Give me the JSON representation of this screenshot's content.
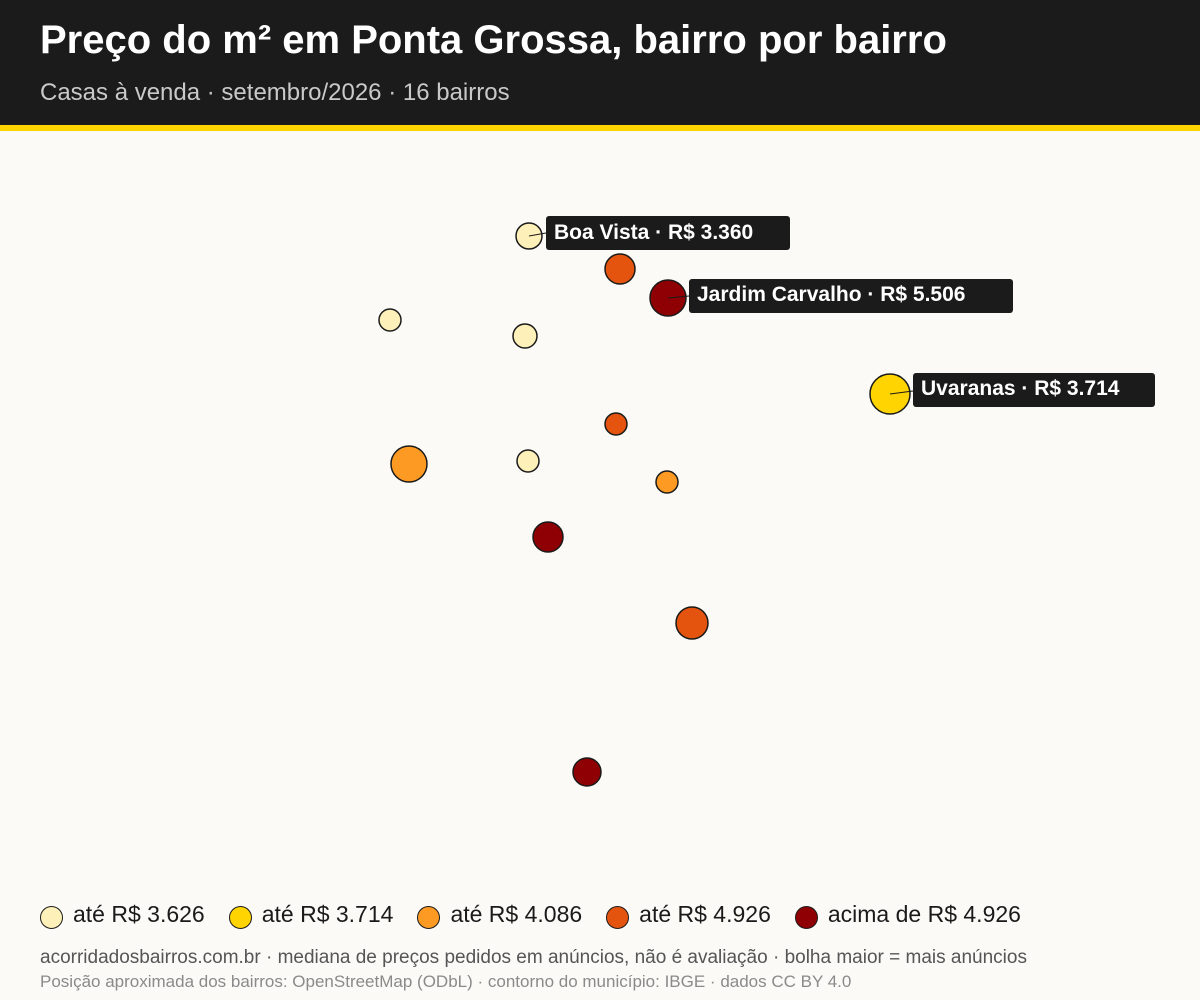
{
  "header": {
    "title": "Preço do m² em Ponta Grossa, bairro por bairro",
    "subtitle": "Casas à venda · setembro/2026 · 16 bairros"
  },
  "colors": {
    "header_bg": "#1b1b1b",
    "accent": "#ffd400",
    "background": "#fbfaf6",
    "classes": [
      "#fdf0b8",
      "#ffd400",
      "#fd9a24",
      "#e4540f",
      "#8f0005"
    ]
  },
  "legend": [
    {
      "label": "até R$ 3.626",
      "color": "#fdf0b8"
    },
    {
      "label": "até R$ 3.714",
      "color": "#ffd400"
    },
    {
      "label": "até R$ 4.086",
      "color": "#fd9a24"
    },
    {
      "label": "até R$ 4.926",
      "color": "#e4540f"
    },
    {
      "label": "acima de R$ 4.926",
      "color": "#8f0005"
    }
  ],
  "callouts": [
    {
      "label": "Boa Vista · R$ 3.360"
    },
    {
      "label": "Jardim Carvalho · R$ 5.506"
    },
    {
      "label": "Uvaranas · R$ 3.714"
    }
  ],
  "footer": {
    "source": "acorridadosbairros.com.br · mediana de preços pedidos em anúncios, não é avaliação · bolha maior = mais anúncios",
    "credits": "Posição aproximada dos bairros: OpenStreetMap (ODbL) · contorno do município: IBGE · dados CC BY 4.0"
  }
}
